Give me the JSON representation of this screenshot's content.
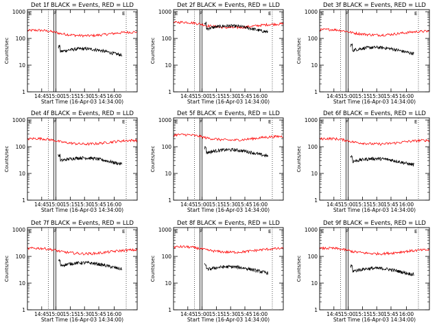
{
  "chart_data": [
    {
      "type": "line",
      "title": "Det 1f BLACK = Events, RED = LLD",
      "xlabel": "Start Time (16-Apr-03 14:34:00)",
      "ylabel": "Counts/sec",
      "x_ticks": [
        "14:45",
        "15:00",
        "15:15",
        "15:30",
        "15:45",
        "16:00"
      ],
      "y_ticks": [
        "1",
        "10",
        "100",
        "1000"
      ],
      "yscale": "log",
      "ylim": [
        1,
        1200
      ],
      "markers": [
        "E",
        "F",
        "E"
      ],
      "series": [
        {
          "color": "#ff0000",
          "level": 150
        },
        {
          "color": "#000000",
          "level": 32
        }
      ]
    },
    {
      "type": "line",
      "title": "Det 2f BLACK = Events, RED = LLD",
      "xlabel": "Start Time (16-Apr-03 14:34:00)",
      "ylabel": "Counts/sec",
      "x_ticks": [
        "14:45",
        "15:00",
        "15:15",
        "15:30",
        "15:45",
        "16:00"
      ],
      "y_ticks": [
        "1",
        "10",
        "100",
        "1000"
      ],
      "yscale": "log",
      "ylim": [
        1,
        1200
      ],
      "markers": [
        "E",
        "F",
        "E"
      ],
      "series": [
        {
          "color": "#ff0000",
          "level": 300
        },
        {
          "color": "#000000",
          "level": 230
        }
      ]
    },
    {
      "type": "line",
      "title": "Det 3f BLACK = Events, RED = LLD",
      "xlabel": "Start Time (16-Apr-03 14:34:00)",
      "ylabel": "Counts/sec",
      "x_ticks": [
        "14:45",
        "15:00",
        "15:15",
        "15:30",
        "15:45",
        "16:00"
      ],
      "y_ticks": [
        "1",
        "10",
        "100",
        "1000"
      ],
      "yscale": "log",
      "ylim": [
        1,
        1200
      ],
      "markers": [
        "E",
        "F",
        "E"
      ],
      "series": [
        {
          "color": "#ff0000",
          "level": 160
        },
        {
          "color": "#000000",
          "level": 36
        }
      ]
    },
    {
      "type": "line",
      "title": "Det 4f BLACK = Events, RED = LLD",
      "xlabel": "Start Time (16-Apr-03 14:34:00)",
      "ylabel": "Counts/sec",
      "x_ticks": [
        "14:45",
        "15:00",
        "15:15",
        "15:30",
        "15:45",
        "16:00"
      ],
      "y_ticks": [
        "1",
        "10",
        "100",
        "1000"
      ],
      "yscale": "log",
      "ylim": [
        1,
        1200
      ],
      "markers": [
        "E",
        "F",
        "E"
      ],
      "series": [
        {
          "color": "#ff0000",
          "level": 150
        },
        {
          "color": "#000000",
          "level": 30
        }
      ]
    },
    {
      "type": "line",
      "title": "Det 5f BLACK = Events, RED = LLD",
      "xlabel": "Start Time (16-Apr-03 14:34:00)",
      "ylabel": "Counts/sec",
      "x_ticks": [
        "14:45",
        "15:00",
        "15:15",
        "15:30",
        "15:45",
        "16:00"
      ],
      "y_ticks": [
        "1",
        "10",
        "100",
        "1000"
      ],
      "yscale": "log",
      "ylim": [
        1,
        1200
      ],
      "markers": [
        "E",
        "F",
        "E"
      ],
      "series": [
        {
          "color": "#ff0000",
          "level": 210
        },
        {
          "color": "#000000",
          "level": 60
        }
      ]
    },
    {
      "type": "line",
      "title": "Det 6f BLACK = Events, RED = LLD",
      "xlabel": "Start Time (16-Apr-03 14:34:00)",
      "ylabel": "Counts/sec",
      "x_ticks": [
        "14:45",
        "15:00",
        "15:15",
        "15:30",
        "15:45",
        "16:00"
      ],
      "y_ticks": [
        "1",
        "10",
        "100",
        "1000"
      ],
      "yscale": "log",
      "ylim": [
        1,
        1200
      ],
      "markers": [
        "E",
        "F",
        "E"
      ],
      "series": [
        {
          "color": "#ff0000",
          "level": 150
        },
        {
          "color": "#000000",
          "level": 28
        }
      ]
    },
    {
      "type": "line",
      "title": "Det 7f BLACK = Events, RED = LLD",
      "xlabel": "Start Time (16-Apr-03 14:34:00)",
      "ylabel": "Counts/sec",
      "x_ticks": [
        "14:45",
        "15:00",
        "15:15",
        "15:30",
        "15:45",
        "16:00"
      ],
      "y_ticks": [
        "1",
        "10",
        "100",
        "1000"
      ],
      "yscale": "log",
      "ylim": [
        1,
        1200
      ],
      "markers": [
        "E",
        "F",
        "E"
      ],
      "series": [
        {
          "color": "#ff0000",
          "level": 150
        },
        {
          "color": "#000000",
          "level": 45
        }
      ]
    },
    {
      "type": "line",
      "title": "Det 8f BLACK = Events, RED = LLD",
      "xlabel": "Start Time (16-Apr-03 14:34:00)",
      "ylabel": "Counts/sec",
      "x_ticks": [
        "14:45",
        "15:00",
        "15:15",
        "15:30",
        "15:45",
        "16:00"
      ],
      "y_ticks": [
        "1",
        "10",
        "100",
        "1000"
      ],
      "yscale": "log",
      "ylim": [
        1,
        1200
      ],
      "markers": [
        "E",
        "F",
        "E"
      ],
      "series": [
        {
          "color": "#ff0000",
          "level": 170
        },
        {
          "color": "#000000",
          "level": 32
        }
      ]
    },
    {
      "type": "line",
      "title": "Det 9f BLACK = Events, RED = LLD",
      "xlabel": "Start Time (16-Apr-03 14:34:00)",
      "ylabel": "Counts/sec",
      "x_ticks": [
        "14:45",
        "15:00",
        "15:15",
        "15:30",
        "15:45",
        "16:00"
      ],
      "y_ticks": [
        "1",
        "10",
        "100",
        "1000"
      ],
      "yscale": "log",
      "ylim": [
        1,
        1200
      ],
      "markers": [
        "E",
        "F",
        "E"
      ],
      "series": [
        {
          "color": "#ff0000",
          "level": 150
        },
        {
          "color": "#000000",
          "level": 28
        }
      ]
    }
  ]
}
